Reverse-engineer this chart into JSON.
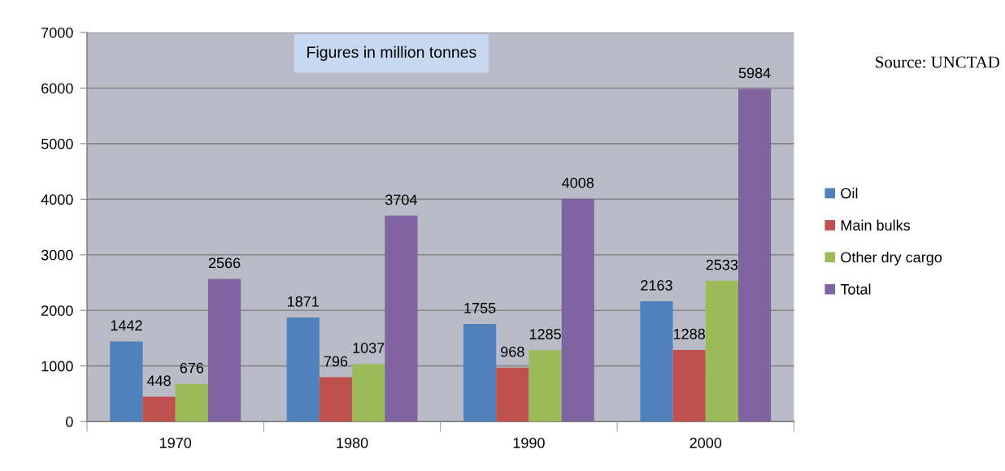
{
  "chart_data": {
    "type": "bar",
    "categories": [
      "1970",
      "1980",
      "1990",
      "2000"
    ],
    "series": [
      {
        "name": "Oil",
        "color": "#4f81bd",
        "values": [
          1442,
          1871,
          1755,
          2163
        ]
      },
      {
        "name": "Main bulks",
        "color": "#c0504d",
        "values": [
          448,
          796,
          968,
          1288
        ]
      },
      {
        "name": "Other dry cargo",
        "color": "#9bbb59",
        "values": [
          676,
          1037,
          1285,
          2533
        ]
      },
      {
        "name": "Total",
        "color": "#8064a2",
        "values": [
          2566,
          3704,
          4008,
          5984
        ]
      }
    ],
    "ylim": [
      0,
      7000
    ],
    "yticks": [
      0,
      1000,
      2000,
      3000,
      4000,
      5000,
      6000,
      7000
    ],
    "grid": "y",
    "legend": "right",
    "data_labels": true,
    "annotations": [
      "Figures in million tonnes",
      "Source: UNCTAD"
    ]
  }
}
